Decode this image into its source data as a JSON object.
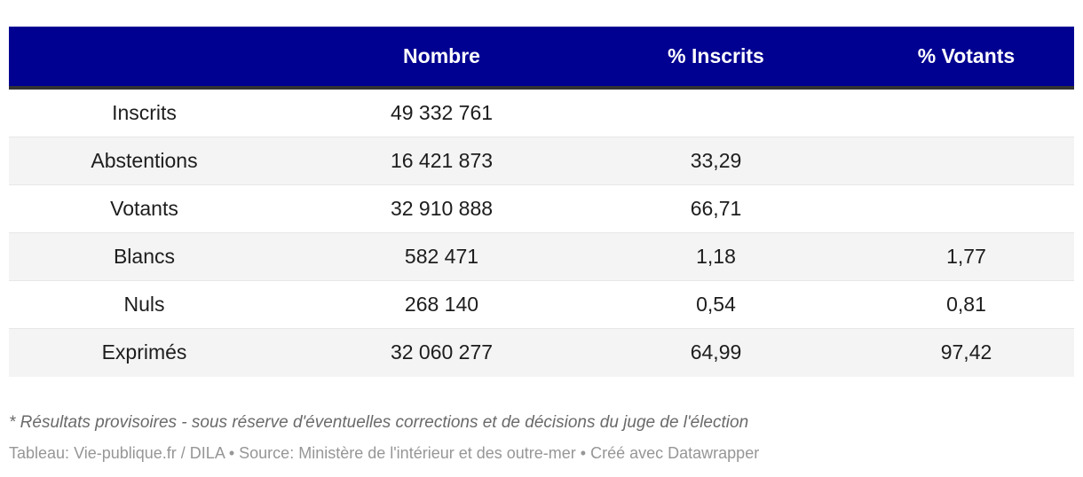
{
  "chart_data": {
    "type": "table",
    "columns": [
      "",
      "Nombre",
      "% Inscrits",
      "% Votants"
    ],
    "rows": [
      [
        "Inscrits",
        "49 332 761",
        "",
        ""
      ],
      [
        "Abstentions",
        "16 421 873",
        "33,29",
        ""
      ],
      [
        "Votants",
        "32 910 888",
        "66,71",
        ""
      ],
      [
        "Blancs",
        "582 471",
        "1,18",
        "1,77"
      ],
      [
        "Nuls",
        "268 140",
        "0,54",
        "0,81"
      ],
      [
        "Exprimés",
        "32 060 277",
        "64,99",
        "97,42"
      ]
    ],
    "footnote": "* Résultats provisoires - sous réserve d'éventuelles corrections et de décisions du juge de l'élection",
    "attribution_full": "Tableau: Vie-publique.fr / DILA • Source: Ministère de l'intérieur et des outre-mer • Créé avec Datawrapper",
    "layout_hints": {
      "header_position": "top",
      "alternating_rows": true
    }
  },
  "attribution": {
    "table_label": "Tableau: ",
    "table_credit": "Vie-publique.fr / DILA",
    "sep1": " • ",
    "source_label": "Source: ",
    "source_credit": "Ministère de l'intérieur et des outre-mer",
    "sep2": " • ",
    "created_label": "Créé avec ",
    "created_credit": "Datawrapper"
  },
  "colors": {
    "header_bg": "#000091",
    "header_text": "#ffffff",
    "divider": "#333333",
    "row_alt_bg": "#f4f4f4",
    "cell_text": "#1d1d1d",
    "footnote_text": "#6a6a6a",
    "attribution_text": "#969696"
  }
}
